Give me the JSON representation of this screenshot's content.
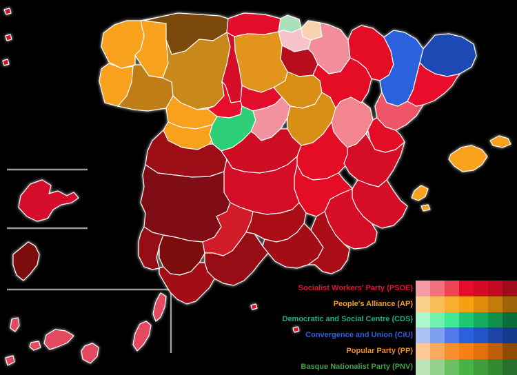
{
  "map": {
    "description": "Choropleth map of Spain election results by province, shaded by winning party and strength",
    "border_color": "#ffffff",
    "inset_line_color": "#9b9b9b",
    "background_color": "#000000",
    "regions": [
      {
        "id": "coruna",
        "name": "A Coruña",
        "party": "AP/PP",
        "color": "#f8a11c"
      },
      {
        "id": "lugo",
        "name": "Lugo",
        "party": "AP/PP",
        "color": "#f8a11c"
      },
      {
        "id": "pontevedra",
        "name": "Pontevedra",
        "party": "AP/PP",
        "color": "#f8a11c"
      },
      {
        "id": "ourense",
        "name": "Ourense",
        "party": "AP/PP",
        "color": "#c07d15"
      },
      {
        "id": "asturias",
        "name": "Asturias",
        "party": "AP/PP",
        "color": "#7c4a0c"
      },
      {
        "id": "leon",
        "name": "León",
        "party": "AP/PP",
        "color": "#c9881b"
      },
      {
        "id": "cantabria",
        "name": "Cantabria",
        "party": "PSOE",
        "color": "#e21129"
      },
      {
        "id": "biscay",
        "name": "Biscay",
        "party": "PNV",
        "color": "#abe0bb"
      },
      {
        "id": "gipuzkoa",
        "name": "Gipuzkoa",
        "party": "AP/PP",
        "color": "#f8d2ae"
      },
      {
        "id": "alava",
        "name": "Álava",
        "party": "PSOE",
        "color": "#f6c3cc"
      },
      {
        "id": "navarre",
        "name": "Navarre",
        "party": "PSOE",
        "color": "#f28e9b"
      },
      {
        "id": "rioja",
        "name": "La Rioja",
        "party": "PSOE",
        "color": "#b80d1e"
      },
      {
        "id": "burgos",
        "name": "Burgos",
        "party": "AP/PP",
        "color": "#e2941b"
      },
      {
        "id": "palencia",
        "name": "Palencia",
        "party": "PSOE",
        "color": "#d50a26"
      },
      {
        "id": "soria",
        "name": "Soria",
        "party": "AP/PP",
        "color": "#d98e16"
      },
      {
        "id": "segovia",
        "name": "Segovia",
        "party": "PSOE",
        "color": "#e21129"
      },
      {
        "id": "valladolid",
        "name": "Valladolid",
        "party": "PSOE",
        "color": "#e80c2b"
      },
      {
        "id": "zamora",
        "name": "Zamora",
        "party": "AP/PP",
        "color": "#f8a11c"
      },
      {
        "id": "salamanca",
        "name": "Salamanca",
        "party": "AP/PP",
        "color": "#f8a11c"
      },
      {
        "id": "avila",
        "name": "Ávila",
        "party": "CDS",
        "color": "#2fd077"
      },
      {
        "id": "madrid",
        "name": "Madrid",
        "party": "PSOE",
        "color": "#f2929f"
      },
      {
        "id": "guadalajara",
        "name": "Guadalajara",
        "party": "AP/PP",
        "color": "#d98e16"
      },
      {
        "id": "caceres",
        "name": "Cáceres",
        "party": "PSOE",
        "color": "#9c0f16"
      },
      {
        "id": "toledo",
        "name": "Toledo",
        "party": "PSOE",
        "color": "#cf0c22"
      },
      {
        "id": "cuenca",
        "name": "Cuenca",
        "party": "PSOE",
        "color": "#e50f26"
      },
      {
        "id": "teruel",
        "name": "Teruel",
        "party": "PSOE",
        "color": "#f2858f"
      },
      {
        "id": "zaragoza",
        "name": "Zaragoza",
        "party": "PSOE",
        "color": "#e50f26"
      },
      {
        "id": "huesca",
        "name": "Huesca",
        "party": "PSOE",
        "color": "#e50f26"
      },
      {
        "id": "lleida",
        "name": "Lleida",
        "party": "CiU",
        "color": "#2a62dd"
      },
      {
        "id": "girona",
        "name": "Girona",
        "party": "CiU",
        "color": "#1c49b4"
      },
      {
        "id": "barcelona",
        "name": "Barcelona",
        "party": "PSOE",
        "color": "#e80c2b"
      },
      {
        "id": "tarragona",
        "name": "Tarragona",
        "party": "PSOE",
        "color": "#ee5566"
      },
      {
        "id": "castellon",
        "name": "Castellón",
        "party": "PSOE",
        "color": "#e50f26"
      },
      {
        "id": "valencia",
        "name": "Valencia",
        "party": "PSOE",
        "color": "#d50a26"
      },
      {
        "id": "alicante",
        "name": "Alicante",
        "party": "PSOE",
        "color": "#d50a26"
      },
      {
        "id": "murcia",
        "name": "Murcia",
        "party": "PSOE",
        "color": "#d50a26"
      },
      {
        "id": "albacete",
        "name": "Albacete",
        "party": "PSOE",
        "color": "#e50f26"
      },
      {
        "id": "ciudadreal",
        "name": "Ciudad Real",
        "party": "PSOE",
        "color": "#d50a26"
      },
      {
        "id": "badajoz",
        "name": "Badajoz",
        "party": "PSOE",
        "color": "#800e13"
      },
      {
        "id": "huelva",
        "name": "Huelva",
        "party": "PSOE",
        "color": "#970c13"
      },
      {
        "id": "seville",
        "name": "Seville",
        "party": "PSOE",
        "color": "#7d0d11"
      },
      {
        "id": "cordoba",
        "name": "Córdoba",
        "party": "PSOE",
        "color": "#d31a2c"
      },
      {
        "id": "jaen",
        "name": "Jaén",
        "party": "PSOE",
        "color": "#ab0d18"
      },
      {
        "id": "granada",
        "name": "Granada",
        "party": "PSOE",
        "color": "#a30c16"
      },
      {
        "id": "almeria",
        "name": "Almería",
        "party": "PSOE",
        "color": "#ab0d18"
      },
      {
        "id": "malaga",
        "name": "Málaga",
        "party": "PSOE",
        "color": "#970c13"
      },
      {
        "id": "cadiz",
        "name": "Cádiz",
        "party": "PSOE",
        "color": "#a30c16"
      },
      {
        "id": "mallorca",
        "name": "Mallorca",
        "party": "AP/PP",
        "color": "#f8a11c"
      },
      {
        "id": "menorca",
        "name": "Menorca",
        "party": "AP/PP",
        "color": "#f8a11c"
      },
      {
        "id": "ibiza",
        "name": "Ibiza",
        "party": "AP/PP",
        "color": "#f8a11c"
      },
      {
        "id": "formentera",
        "name": "Formentera",
        "party": "AP/PP",
        "color": "#f8a11c"
      },
      {
        "id": "lanzarote",
        "name": "Lanzarote",
        "party": "PSOE",
        "color": "#e54860"
      },
      {
        "id": "fuerteventura",
        "name": "Fuerteventura",
        "party": "PSOE",
        "color": "#e54860"
      },
      {
        "id": "grancanaria",
        "name": "Gran Canaria",
        "party": "PSOE",
        "color": "#e54860"
      },
      {
        "id": "tenerife",
        "name": "Tenerife",
        "party": "PSOE",
        "color": "#e54860"
      },
      {
        "id": "gomera",
        "name": "La Gomera",
        "party": "PSOE",
        "color": "#e54860"
      },
      {
        "id": "lapalma",
        "name": "La Palma",
        "party": "PSOE",
        "color": "#e54860"
      },
      {
        "id": "hierro",
        "name": "El Hierro",
        "party": "PSOE",
        "color": "#e54860"
      },
      {
        "id": "inset_grancanaria",
        "name": "Las Palmas inset island",
        "party": "PSOE",
        "color": "#d6112b"
      },
      {
        "id": "inset_tenerife",
        "name": "Santa Cruz de Tenerife inset island",
        "party": "PSOE",
        "color": "#7d0d11"
      },
      {
        "id": "ceuta",
        "name": "Ceuta",
        "party": "PSOE",
        "color": "#e50f26"
      },
      {
        "id": "melilla",
        "name": "Melilla",
        "party": "PSOE",
        "color": "#e50f26"
      },
      {
        "id": "speck1",
        "name": "islet",
        "party": "PSOE",
        "color": "#d6112b"
      },
      {
        "id": "speck2",
        "name": "islet",
        "party": "PSOE",
        "color": "#d6112b"
      },
      {
        "id": "speck3",
        "name": "islet",
        "party": "PSOE",
        "color": "#d6112b"
      }
    ]
  },
  "legend": {
    "entries": [
      {
        "id": "psoe",
        "label": "Socialist Workers' Party (PSOE)",
        "text_color": "#e8112d",
        "shades": [
          "#f59ca8",
          "#f2707f",
          "#ee4556",
          "#e80c2b",
          "#d50a26",
          "#c10923",
          "#9f0b19"
        ]
      },
      {
        "id": "ap",
        "label": "People's Alliance (AP)",
        "text_color": "#f7a11c",
        "shades": [
          "#fbd08c",
          "#f9bd55",
          "#f8ae2e",
          "#f6a011",
          "#e08d0c",
          "#c47b0a",
          "#9c6407"
        ]
      },
      {
        "id": "cds",
        "label": "Democratic and Social Centre (CDS)",
        "text_color": "#12b28c",
        "shades": [
          "#abf7d0",
          "#72f0ae",
          "#41e995",
          "#1ec873",
          "#17ab5f",
          "#11904c",
          "#0b6e3a"
        ]
      },
      {
        "id": "ciu",
        "label": "Convergence and Union (CiU)",
        "text_color": "#2a62dd",
        "shades": [
          "#aec3f5",
          "#7fa0ef",
          "#5179e8",
          "#2a62dd",
          "#2353c4",
          "#1c45a6",
          "#143a8c"
        ]
      },
      {
        "id": "pp",
        "label": "Popular Party (PP)",
        "text_color": "#f78b1a",
        "shades": [
          "#fdc997",
          "#fba95e",
          "#f98e2f",
          "#f87f16",
          "#e2700d",
          "#bf5f0a",
          "#8f4a05"
        ]
      },
      {
        "id": "pnv",
        "label": "Basque Nationalist Party (PNV)",
        "text_color": "#43a047",
        "shades": [
          "#bce3b6",
          "#93d28c",
          "#69c162",
          "#47b344",
          "#3f9e3b",
          "#308a2f",
          "#25702a"
        ]
      }
    ]
  }
}
